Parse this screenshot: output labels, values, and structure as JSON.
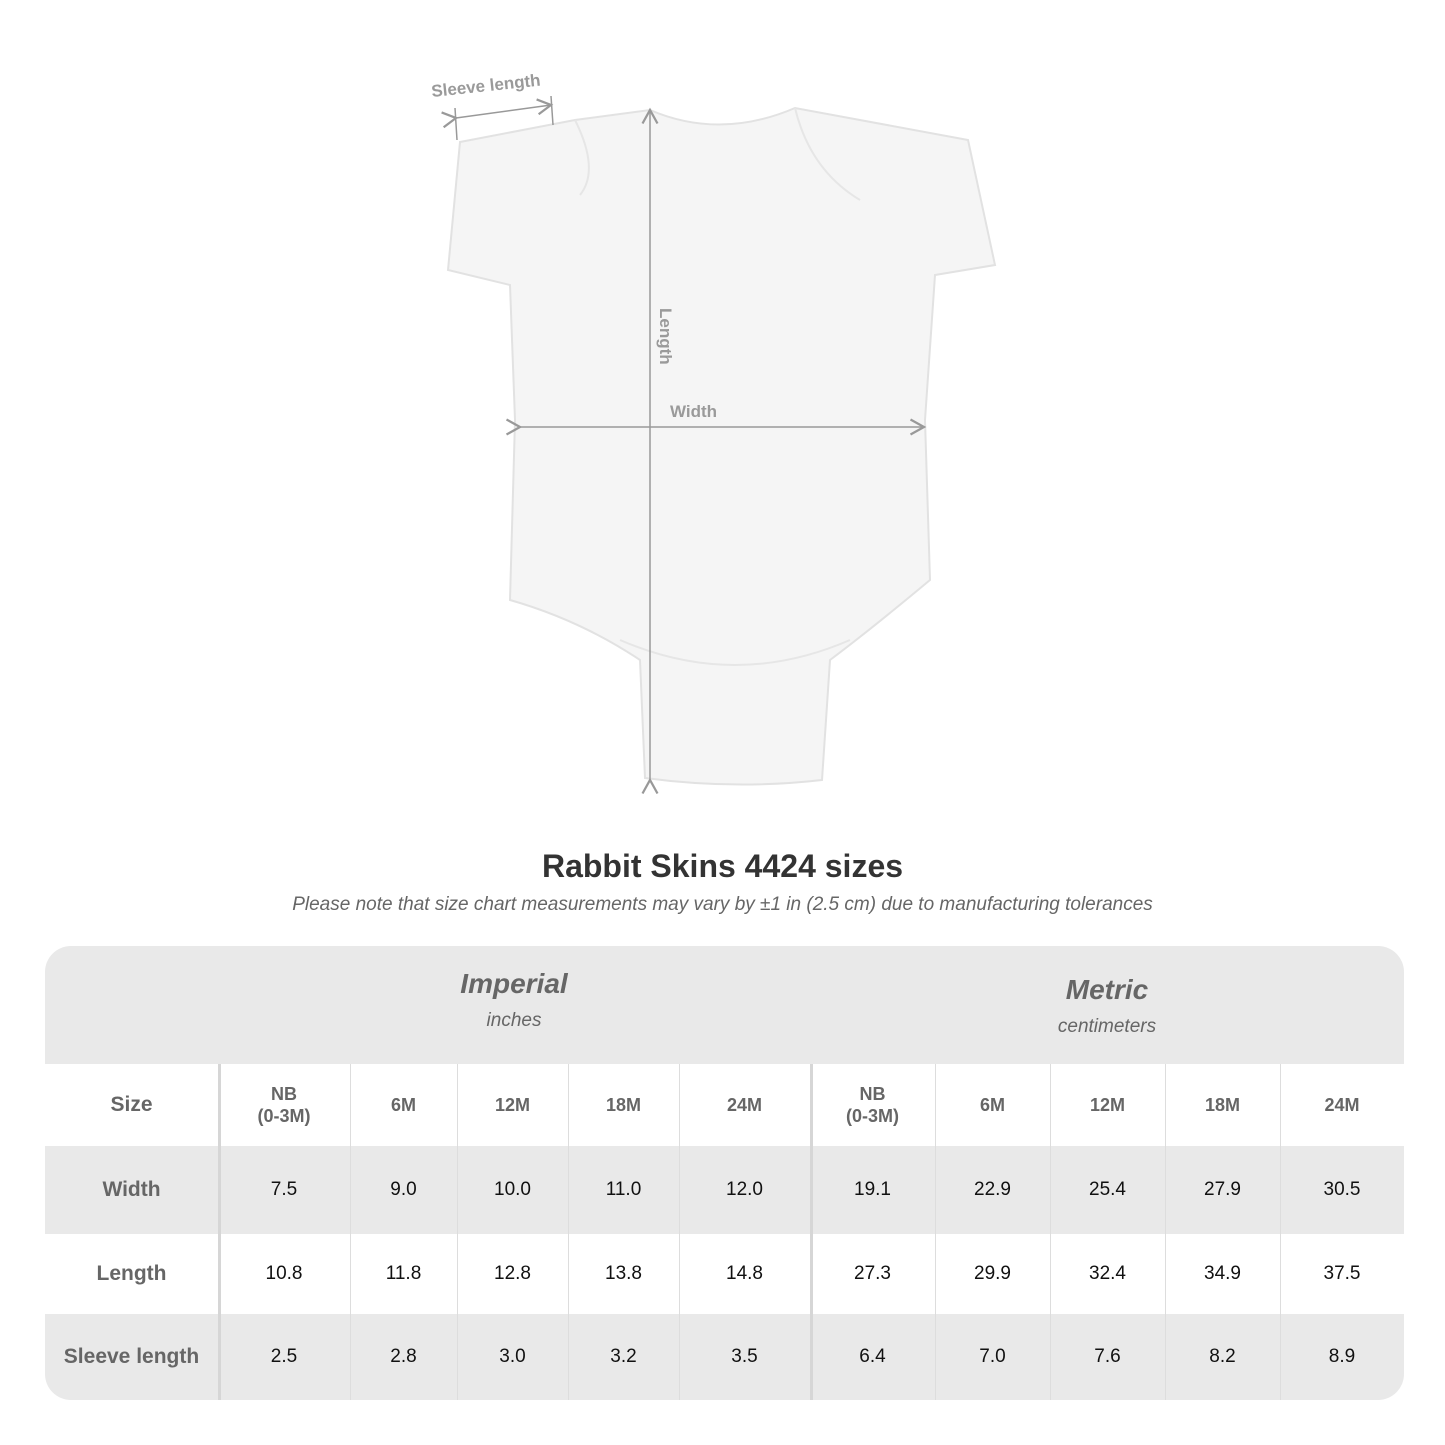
{
  "figure": {
    "labels": {
      "sleeve": "Sleeve length",
      "length": "Length",
      "width": "Width"
    }
  },
  "title": "Rabbit Skins 4424 sizes",
  "note": "Please note that size chart measurements may vary by ±1 in (2.5 cm) due to manufacturing tolerances",
  "table": {
    "imperial": {
      "name": "Imperial",
      "unit": "inches"
    },
    "metric": {
      "name": "Metric",
      "unit": "centimeters"
    },
    "size_label": "Size",
    "sizes": [
      "NB\n(0-3M)",
      "6M",
      "12M",
      "18M",
      "24M"
    ],
    "rows": [
      {
        "label": "Width",
        "imperial": [
          "7.5",
          "9.0",
          "10.0",
          "11.0",
          "12.0"
        ],
        "metric": [
          "19.1",
          "22.9",
          "25.4",
          "27.9",
          "30.5"
        ]
      },
      {
        "label": "Length",
        "imperial": [
          "10.8",
          "11.8",
          "12.8",
          "13.8",
          "14.8"
        ],
        "metric": [
          "27.3",
          "29.9",
          "32.4",
          "34.9",
          "37.5"
        ]
      },
      {
        "label": "Sleeve length",
        "imperial": [
          "2.5",
          "2.8",
          "3.0",
          "3.2",
          "3.5"
        ],
        "metric": [
          "6.4",
          "7.0",
          "7.6",
          "8.2",
          "8.9"
        ]
      }
    ],
    "colors": {
      "band": "#e9e9e9",
      "header_text": "#666666"
    }
  }
}
